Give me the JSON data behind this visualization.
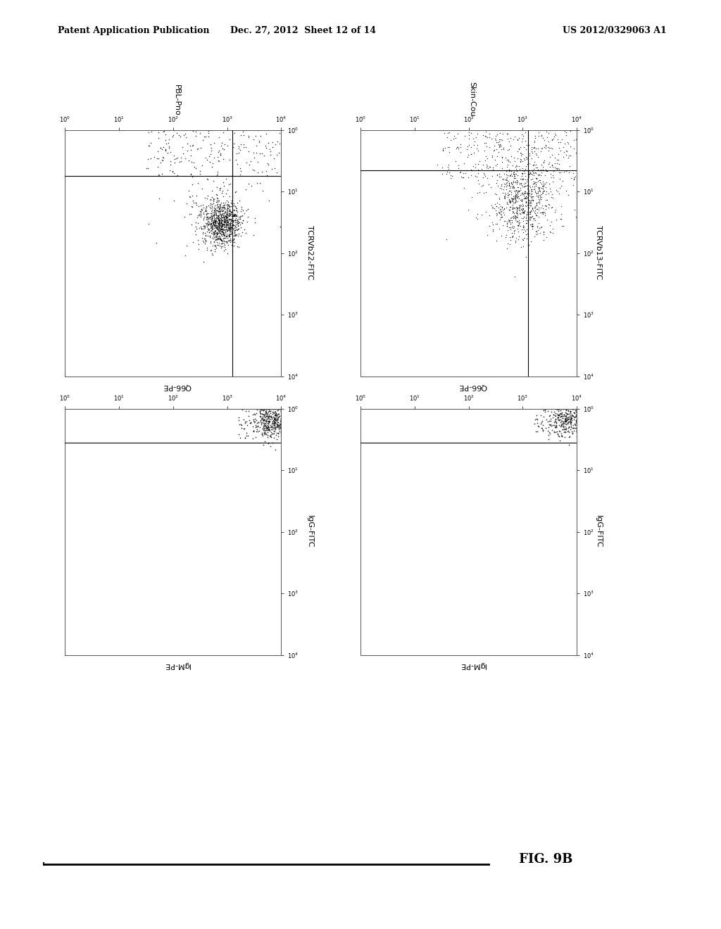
{
  "header_left": "Patent Application Publication",
  "header_center": "Dec. 27, 2012  Sheet 12 of 14",
  "header_right": "US 2012/0329063 A1",
  "figure_label": "FIG. 9B",
  "panel_titles": [
    "PBL-Pno",
    "Skin-Cou"
  ],
  "panel_top_left_xlabel": "Q66-PE",
  "panel_top_right_xlabel": "Q66-PE",
  "panel_top_left_ylabel": "TCRVb22-FITC",
  "panel_top_right_ylabel": "TCRVb13-FITC",
  "panel_bot_left_xlabel": "IgM-PE",
  "panel_bot_right_xlabel": "IgM-PE",
  "panel_bot_left_ylabel": "IgG-FITC",
  "panel_bot_right_ylabel": "IgG-FITC",
  "background_color": "#ffffff",
  "dot_color": "#000000"
}
